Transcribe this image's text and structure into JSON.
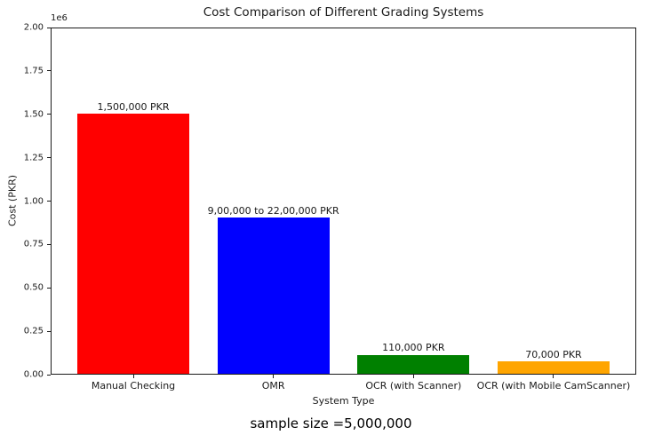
{
  "figure": {
    "footer": "sample size =5,000,000"
  },
  "chart_data": {
    "type": "bar",
    "title": "Cost Comparison of Different Grading Systems",
    "xlabel": "System Type",
    "ylabel": "Cost (PKR)",
    "y_offset_label": "1e6",
    "categories": [
      "Manual Checking",
      "OMR",
      "OCR (with Scanner)",
      "OCR (with Mobile CamScanner)"
    ],
    "values": [
      1500000,
      900000,
      110000,
      70000
    ],
    "bar_labels": [
      "1,500,000 PKR",
      "9,00,000 to 22,00,000 PKR",
      "110,000 PKR",
      "70,000 PKR"
    ],
    "bar_colors": [
      "#ff0000",
      "#0000ff",
      "#008000",
      "#ffa500"
    ],
    "ylim": [
      0,
      2000000
    ],
    "yticks": [
      0,
      250000,
      500000,
      750000,
      1000000,
      1250000,
      1500000,
      1750000,
      2000000
    ],
    "ytick_labels": [
      "0.00",
      "0.25",
      "0.50",
      "0.75",
      "1.00",
      "1.25",
      "1.50",
      "1.75",
      "2.00"
    ],
    "grid": false,
    "legend": false,
    "annotation": "sample size =5,000,000"
  }
}
